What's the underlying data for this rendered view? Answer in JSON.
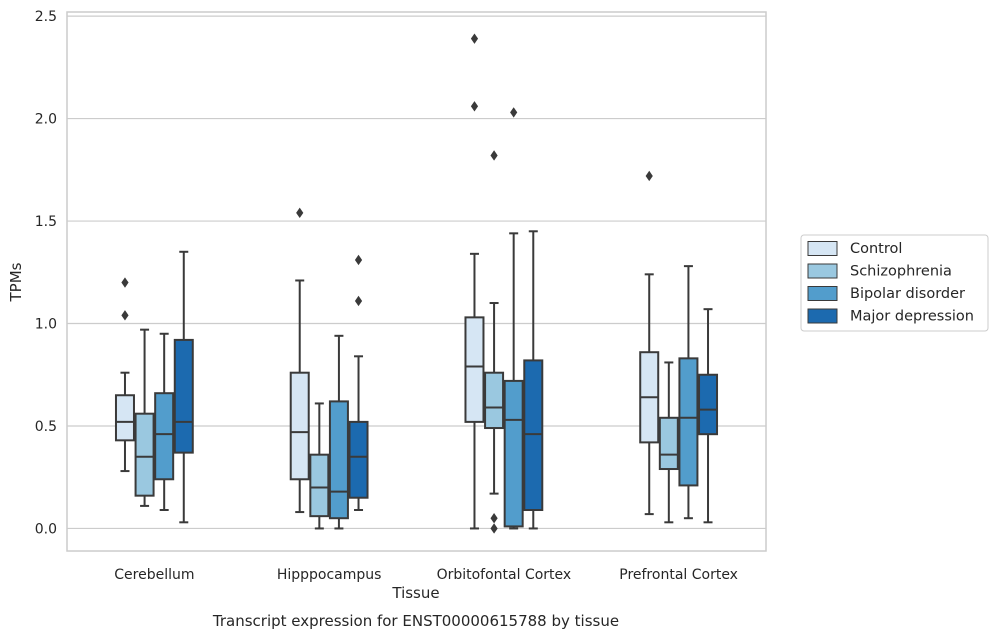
{
  "chart_data": {
    "type": "box",
    "title": "Transcript expression for ENST00000615788 by tissue",
    "xlabel": "Tissue",
    "ylabel": "TPMs",
    "ylim": [
      -0.11,
      2.52
    ],
    "yticks": [
      "0.0",
      "0.5",
      "1.0",
      "1.5",
      "2.0",
      "2.5"
    ],
    "ytick_values": [
      0,
      0.5,
      1.0,
      1.5,
      2.0,
      2.5
    ],
    "grid": true,
    "legend_position": "right",
    "categories": [
      "Cerebellum",
      "Hipppocampus",
      "Orbitofontal Cortex",
      "Prefrontal Cortex"
    ],
    "series": [
      {
        "name": "Control",
        "color": "#d6e6f4",
        "boxes": [
          {
            "whisker_low": 0.28,
            "q1": 0.43,
            "median": 0.52,
            "q3": 0.65,
            "whisker_high": 0.76,
            "outliers": [
              1.04,
              1.2
            ]
          },
          {
            "whisker_low": 0.08,
            "q1": 0.24,
            "median": 0.47,
            "q3": 0.76,
            "whisker_high": 1.21,
            "outliers": [
              1.54
            ]
          },
          {
            "whisker_low": 0.0,
            "q1": 0.52,
            "median": 0.79,
            "q3": 1.03,
            "whisker_high": 1.34,
            "outliers": [
              2.06,
              2.39
            ]
          },
          {
            "whisker_low": 0.07,
            "q1": 0.42,
            "median": 0.64,
            "q3": 0.86,
            "whisker_high": 1.24,
            "outliers": [
              1.72
            ]
          }
        ]
      },
      {
        "name": "Schizophrenia",
        "color": "#9ac8e0",
        "boxes": [
          {
            "whisker_low": 0.11,
            "q1": 0.16,
            "median": 0.35,
            "q3": 0.56,
            "whisker_high": 0.97,
            "outliers": []
          },
          {
            "whisker_low": 0.0,
            "q1": 0.06,
            "median": 0.2,
            "q3": 0.36,
            "whisker_high": 0.61,
            "outliers": []
          },
          {
            "whisker_low": 0.17,
            "q1": 0.49,
            "median": 0.59,
            "q3": 0.76,
            "whisker_high": 1.1,
            "outliers": [
              0.0,
              0.05,
              1.82
            ]
          },
          {
            "whisker_low": 0.03,
            "q1": 0.29,
            "median": 0.36,
            "q3": 0.54,
            "whisker_high": 0.81,
            "outliers": []
          }
        ]
      },
      {
        "name": "Bipolar disorder",
        "color": "#529dcc",
        "boxes": [
          {
            "whisker_low": 0.09,
            "q1": 0.24,
            "median": 0.46,
            "q3": 0.66,
            "whisker_high": 0.95,
            "outliers": []
          },
          {
            "whisker_low": 0.0,
            "q1": 0.05,
            "median": 0.18,
            "q3": 0.62,
            "whisker_high": 0.94,
            "outliers": []
          },
          {
            "whisker_low": 0.0,
            "q1": 0.01,
            "median": 0.53,
            "q3": 0.72,
            "whisker_high": 1.44,
            "outliers": [
              2.03
            ]
          },
          {
            "whisker_low": 0.05,
            "q1": 0.21,
            "median": 0.54,
            "q3": 0.83,
            "whisker_high": 1.28,
            "outliers": []
          }
        ]
      },
      {
        "name": "Major depression",
        "color": "#1c6aaf",
        "boxes": [
          {
            "whisker_low": 0.03,
            "q1": 0.37,
            "median": 0.52,
            "q3": 0.92,
            "whisker_high": 1.35,
            "outliers": []
          },
          {
            "whisker_low": 0.09,
            "q1": 0.15,
            "median": 0.35,
            "q3": 0.52,
            "whisker_high": 0.84,
            "outliers": [
              1.11,
              1.31
            ]
          },
          {
            "whisker_low": 0.0,
            "q1": 0.09,
            "median": 0.46,
            "q3": 0.82,
            "whisker_high": 1.45,
            "outliers": []
          },
          {
            "whisker_low": 0.03,
            "q1": 0.46,
            "median": 0.58,
            "q3": 0.75,
            "whisker_high": 1.07,
            "outliers": []
          }
        ]
      }
    ]
  }
}
